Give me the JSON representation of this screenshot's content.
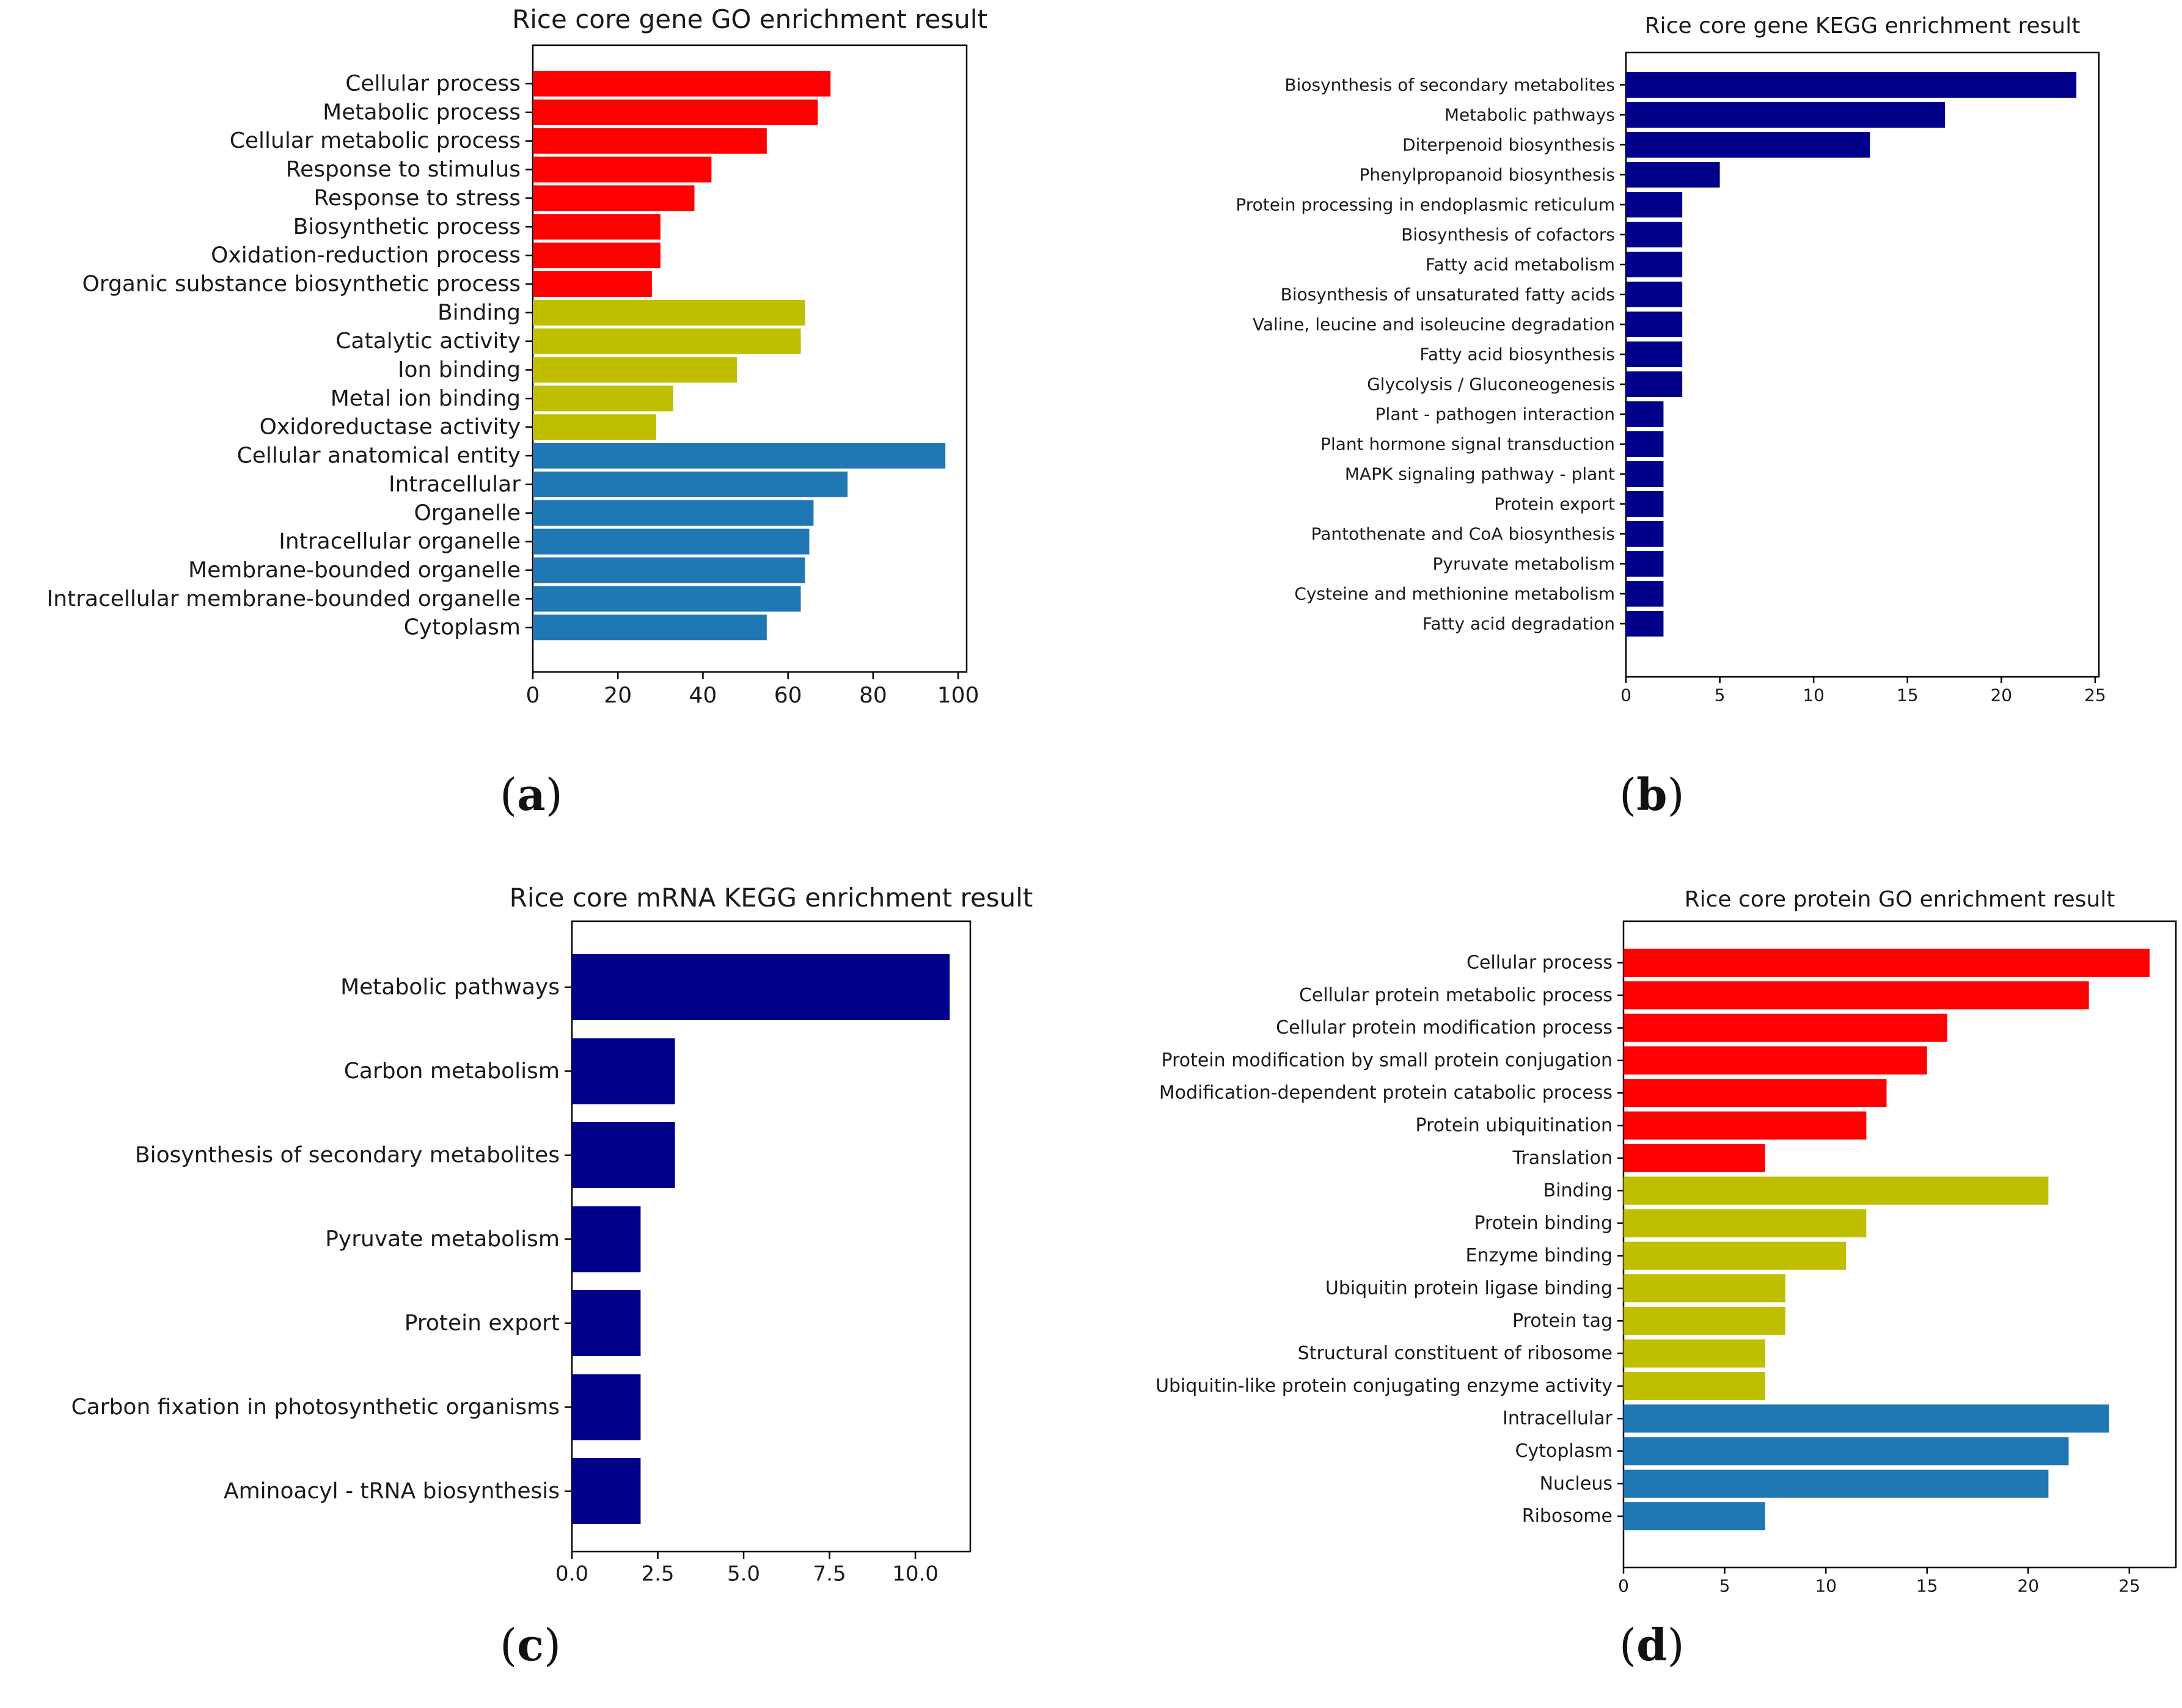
{
  "colors": {
    "biological_process": "#ff0000",
    "molecular_function": "#bfbf00",
    "cellular_component": "#1f77b4",
    "kegg": "#00008b"
  },
  "panel_labels": [
    "a",
    "b",
    "c",
    "d"
  ],
  "chart_data": [
    {
      "type": "bar",
      "orientation": "horizontal",
      "title": "Rice core gene GO enrichment result",
      "xlabel": "",
      "ylabel": "",
      "xlim": [
        0,
        102
      ],
      "xticks": [
        0,
        20,
        40,
        60,
        80,
        100
      ],
      "categories": [
        "Cellular process",
        "Metabolic process",
        "Cellular metabolic process",
        "Response to stimulus",
        "Response to stress",
        "Biosynthetic process",
        "Oxidation-reduction process",
        "Organic substance biosynthetic process",
        "Binding",
        "Catalytic activity",
        "Ion binding",
        "Metal ion binding",
        "Oxidoreductase activity",
        "Cellular anatomical entity",
        "Intracellular",
        "Organelle",
        "Intracellular organelle",
        "Membrane-bounded organelle",
        "Intracellular membrane-bounded organelle",
        "Cytoplasm"
      ],
      "values": [
        70,
        67,
        55,
        42,
        38,
        30,
        30,
        28,
        64,
        63,
        48,
        33,
        29,
        97,
        74,
        66,
        65,
        64,
        63,
        55
      ],
      "groups": [
        "biological_process",
        "biological_process",
        "biological_process",
        "biological_process",
        "biological_process",
        "biological_process",
        "biological_process",
        "biological_process",
        "molecular_function",
        "molecular_function",
        "molecular_function",
        "molecular_function",
        "molecular_function",
        "cellular_component",
        "cellular_component",
        "cellular_component",
        "cellular_component",
        "cellular_component",
        "cellular_component",
        "cellular_component"
      ]
    },
    {
      "type": "bar",
      "orientation": "horizontal",
      "title": "Rice core gene KEGG enrichment result",
      "xlabel": "",
      "ylabel": "",
      "xlim": [
        0,
        25.2
      ],
      "xticks": [
        0,
        5,
        10,
        15,
        20,
        25
      ],
      "categories": [
        "Biosynthesis of secondary metabolites",
        "Metabolic pathways",
        "Diterpenoid biosynthesis",
        "Phenylpropanoid biosynthesis",
        "Protein processing in endoplasmic reticulum",
        "Biosynthesis of cofactors",
        "Fatty acid metabolism",
        "Biosynthesis of unsaturated fatty acids",
        "Valine, leucine and isoleucine degradation",
        "Fatty acid biosynthesis",
        "Glycolysis / Gluconeogenesis",
        "Plant - pathogen interaction",
        "Plant hormone signal transduction",
        "MAPK signaling pathway - plant",
        "Protein export",
        "Pantothenate and CoA biosynthesis",
        "Pyruvate metabolism",
        "Cysteine and methionine metabolism",
        "Fatty acid degradation"
      ],
      "values": [
        24,
        17,
        13,
        5,
        3,
        3,
        3,
        3,
        3,
        3,
        3,
        2,
        2,
        2,
        2,
        2,
        2,
        2,
        2
      ],
      "groups": [
        "kegg",
        "kegg",
        "kegg",
        "kegg",
        "kegg",
        "kegg",
        "kegg",
        "kegg",
        "kegg",
        "kegg",
        "kegg",
        "kegg",
        "kegg",
        "kegg",
        "kegg",
        "kegg",
        "kegg",
        "kegg",
        "kegg"
      ]
    },
    {
      "type": "bar",
      "orientation": "horizontal",
      "title": "Rice core mRNA KEGG enrichment result",
      "xlabel": "",
      "ylabel": "",
      "xlim": [
        0,
        11.6
      ],
      "xticks": [
        0.0,
        2.5,
        5.0,
        7.5,
        10.0
      ],
      "xtick_labels": [
        "0.0",
        "2.5",
        "5.0",
        "7.5",
        "10.0"
      ],
      "categories": [
        "Metabolic pathways",
        "Carbon metabolism",
        "Biosynthesis of secondary metabolites",
        "Pyruvate metabolism",
        "Protein export",
        "Carbon fixation in photosynthetic organisms",
        "Aminoacyl - tRNA biosynthesis"
      ],
      "values": [
        11,
        3,
        3,
        2,
        2,
        2,
        2
      ],
      "groups": [
        "kegg",
        "kegg",
        "kegg",
        "kegg",
        "kegg",
        "kegg",
        "kegg"
      ]
    },
    {
      "type": "bar",
      "orientation": "horizontal",
      "title": "Rice core protein GO enrichment result",
      "xlabel": "",
      "ylabel": "",
      "xlim": [
        0,
        27.3
      ],
      "xticks": [
        0,
        5,
        10,
        15,
        20,
        25
      ],
      "categories": [
        "Cellular process",
        "Cellular protein metabolic process",
        "Cellular protein modification process",
        "Protein modification by small protein conjugation",
        "Modification-dependent protein catabolic process",
        "Protein ubiquitination",
        "Translation",
        "Binding",
        "Protein binding",
        "Enzyme binding",
        "Ubiquitin protein ligase binding",
        "Protein tag",
        "Structural constituent of ribosome",
        "Ubiquitin-like protein conjugating enzyme activity",
        "Intracellular",
        "Cytoplasm",
        "Nucleus",
        "Ribosome"
      ],
      "values": [
        26,
        23,
        16,
        15,
        13,
        12,
        7,
        21,
        12,
        11,
        8,
        8,
        7,
        7,
        24,
        22,
        21,
        7
      ],
      "groups": [
        "biological_process",
        "biological_process",
        "biological_process",
        "biological_process",
        "biological_process",
        "biological_process",
        "biological_process",
        "molecular_function",
        "molecular_function",
        "molecular_function",
        "molecular_function",
        "molecular_function",
        "molecular_function",
        "molecular_function",
        "cellular_component",
        "cellular_component",
        "cellular_component",
        "cellular_component"
      ]
    }
  ]
}
